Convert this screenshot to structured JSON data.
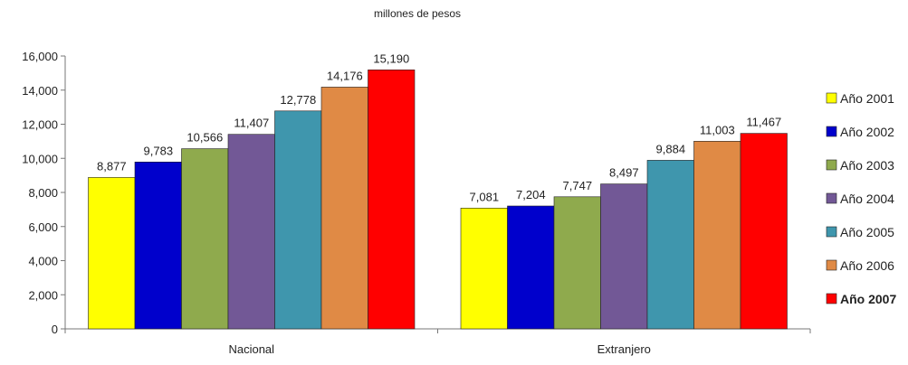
{
  "chart_data": {
    "type": "bar",
    "title": "millones de pesos",
    "categories": [
      "Nacional",
      "Extranjero"
    ],
    "series": [
      {
        "name": "Año 2001",
        "values": [
          8877,
          7081
        ],
        "color": "#ffff00"
      },
      {
        "name": "Año 2002",
        "values": [
          9783,
          7204
        ],
        "color": "#0000cc"
      },
      {
        "name": "Año 2003",
        "values": [
          10566,
          7747
        ],
        "color": "#8faa4d"
      },
      {
        "name": "Año 2004",
        "values": [
          11407,
          8497
        ],
        "color": "#725896"
      },
      {
        "name": "Año 2005",
        "values": [
          12778,
          9884
        ],
        "color": "#3f96ad"
      },
      {
        "name": "Año 2006",
        "values": [
          14176,
          11003
        ],
        "color": "#e08a45"
      },
      {
        "name": "Año 2007",
        "values": [
          15190,
          11467
        ],
        "color": "#ff0000",
        "bold": true
      }
    ],
    "data_labels": [
      [
        "8,877",
        "7,081"
      ],
      [
        "9,783",
        "7,204"
      ],
      [
        "10,566",
        "7,747"
      ],
      [
        "11,407",
        "8,497"
      ],
      [
        "12,778",
        "9,884"
      ],
      [
        "14,176",
        "11,003"
      ],
      [
        "15,190",
        "11,467"
      ]
    ],
    "y_ticks": [
      "0",
      "2,000",
      "4,000",
      "6,000",
      "8,000",
      "10,000",
      "12,000",
      "14,000",
      "16,000"
    ],
    "ylim": [
      0,
      16000
    ],
    "grid": false,
    "legend_position": "right"
  }
}
